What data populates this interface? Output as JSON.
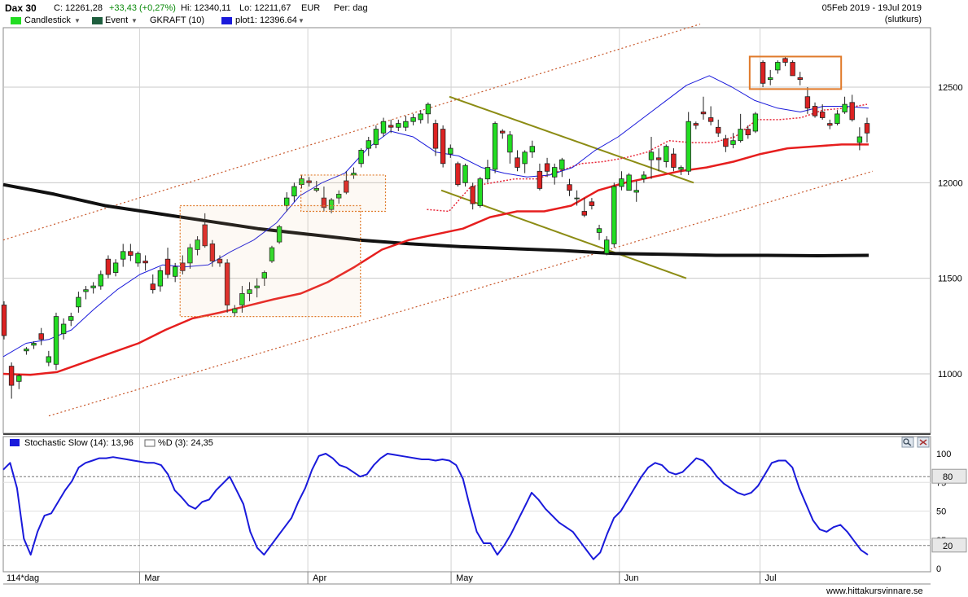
{
  "header": {
    "symbol": "Dax 30",
    "close": "C: 12261,28",
    "change": "+33,43 (+0,27%)",
    "high": "Hi: 12340,11",
    "low": "Lo: 12211,67",
    "currency": "EUR",
    "period": "Per: dag",
    "date_range": "05Feb 2019 - 19Jul 2019",
    "price_type": "(slutkurs)"
  },
  "legend": {
    "candlestick": "Candlestick",
    "event": "Event",
    "gkraft": "GKRAFT (10)",
    "plot1": "plot1: 12396.64"
  },
  "stoch_legend": {
    "k": "Stochastic Slow (14): 13,96",
    "d": "%D (3): 24,35"
  },
  "bottom": {
    "interval": "114*dag",
    "watermark": "www.hittakursvinnare.se"
  },
  "colors": {
    "up": "#22dd22",
    "down": "#dd2222",
    "ma_black": "#111111",
    "ma_red": "#e61e1e",
    "ma_blue": "#1a1adb",
    "stoch": "#1a1adb",
    "channel": "#c8572a",
    "wedge": "#8c8c14",
    "box": "#e07a2a",
    "event_swatch": "#1e5e3e"
  },
  "chart_data": [
    {
      "type": "candlestick",
      "y_axis": {
        "ticks": [
          11000,
          11500,
          12000,
          12500
        ],
        "range": [
          10700,
          12900
        ]
      },
      "months": [
        "Mar",
        "Apr",
        "May",
        "Jun",
        "Jul"
      ],
      "candles": [
        [
          11360,
          11380,
          11180,
          11200
        ],
        [
          11040,
          11060,
          10870,
          10940
        ],
        [
          10960,
          11000,
          10920,
          10990
        ],
        [
          11120,
          11140,
          11100,
          11130
        ],
        [
          11150,
          11170,
          11130,
          11160
        ],
        [
          11210,
          11240,
          11150,
          11180
        ],
        [
          11060,
          11120,
          11040,
          11090
        ],
        [
          11050,
          11320,
          11020,
          11300
        ],
        [
          11210,
          11290,
          11180,
          11260
        ],
        [
          11280,
          11320,
          11250,
          11300
        ],
        [
          11350,
          11430,
          11320,
          11400
        ],
        [
          11430,
          11460,
          11390,
          11440
        ],
        [
          11450,
          11480,
          11420,
          11460
        ],
        [
          11460,
          11540,
          11440,
          11520
        ],
        [
          11600,
          11620,
          11500,
          11520
        ],
        [
          11530,
          11600,
          11510,
          11580
        ],
        [
          11600,
          11680,
          11560,
          11640
        ],
        [
          11640,
          11680,
          11590,
          11620
        ],
        [
          11580,
          11640,
          11560,
          11630
        ],
        [
          11590,
          11620,
          11540,
          11580
        ],
        [
          11470,
          11520,
          11420,
          11440
        ],
        [
          11460,
          11560,
          11430,
          11540
        ],
        [
          11600,
          11660,
          11500,
          11520
        ],
        [
          11510,
          11580,
          11480,
          11560
        ],
        [
          11580,
          11620,
          11520,
          11540
        ],
        [
          11580,
          11680,
          11550,
          11660
        ],
        [
          11650,
          11720,
          11620,
          11700
        ],
        [
          11780,
          11840,
          11660,
          11670
        ],
        [
          11680,
          11700,
          11560,
          11590
        ],
        [
          11600,
          11620,
          11560,
          11580
        ],
        [
          11580,
          11600,
          11320,
          11360
        ],
        [
          11320,
          11360,
          11300,
          11340
        ],
        [
          11360,
          11460,
          11320,
          11420
        ],
        [
          11420,
          11480,
          11380,
          11440
        ],
        [
          11450,
          11500,
          11400,
          11460
        ],
        [
          11500,
          11540,
          11460,
          11530
        ],
        [
          11590,
          11670,
          11580,
          11660
        ],
        [
          11690,
          11780,
          11680,
          11770
        ],
        [
          11880,
          11950,
          11850,
          11920
        ],
        [
          11930,
          12000,
          11900,
          11980
        ],
        [
          11990,
          12040,
          11970,
          12020
        ],
        [
          12010,
          12030,
          11980,
          12000
        ],
        [
          11960,
          12010,
          11950,
          11970
        ],
        [
          11920,
          11980,
          11850,
          11870
        ],
        [
          11860,
          11920,
          11840,
          11910
        ],
        [
          11920,
          11960,
          11890,
          11940
        ],
        [
          12010,
          12060,
          11940,
          11950
        ],
        [
          12040,
          12080,
          12020,
          12050
        ],
        [
          12100,
          12180,
          12080,
          12170
        ],
        [
          12180,
          12240,
          12140,
          12220
        ],
        [
          12200,
          12300,
          12180,
          12280
        ],
        [
          12260,
          12340,
          12240,
          12320
        ],
        [
          12300,
          12330,
          12260,
          12290
        ],
        [
          12290,
          12330,
          12270,
          12310
        ],
        [
          12290,
          12350,
          12270,
          12320
        ],
        [
          12320,
          12360,
          12300,
          12340
        ],
        [
          12330,
          12380,
          12310,
          12360
        ],
        [
          12360,
          12420,
          12310,
          12410
        ],
        [
          12310,
          12330,
          12140,
          12180
        ],
        [
          12280,
          12300,
          12080,
          12100
        ],
        [
          12150,
          12200,
          12130,
          12180
        ],
        [
          12100,
          12110,
          11980,
          11990
        ],
        [
          12000,
          12100,
          11980,
          12090
        ],
        [
          11980,
          12000,
          11860,
          11890
        ],
        [
          11880,
          12030,
          11870,
          12020
        ],
        [
          12020,
          12120,
          12000,
          12080
        ],
        [
          12070,
          12320,
          12050,
          12310
        ],
        [
          12270,
          12280,
          12230,
          12260
        ],
        [
          12160,
          12270,
          12100,
          12250
        ],
        [
          12130,
          12170,
          12060,
          12080
        ],
        [
          12100,
          12170,
          12050,
          12160
        ],
        [
          12160,
          12220,
          12130,
          12190
        ],
        [
          12060,
          12100,
          11960,
          11970
        ],
        [
          12100,
          12130,
          12030,
          12060
        ],
        [
          12030,
          12100,
          11990,
          12080
        ],
        [
          12070,
          12130,
          12030,
          12120
        ],
        [
          11990,
          12020,
          11930,
          11960
        ],
        [
          11920,
          11960,
          11880,
          11920
        ],
        [
          11850,
          11920,
          11820,
          11830
        ],
        [
          11900,
          11920,
          11860,
          11880
        ],
        [
          11740,
          11780,
          11700,
          11760
        ],
        [
          11630,
          11720,
          11620,
          11700
        ],
        [
          11680,
          12000,
          11660,
          11980
        ],
        [
          11980,
          12060,
          11960,
          12020
        ],
        [
          11960,
          12050,
          11960,
          12040
        ],
        [
          11950,
          12010,
          11900,
          11960
        ],
        [
          12020,
          12060,
          12000,
          12040
        ],
        [
          12120,
          12240,
          12020,
          12160
        ],
        [
          12130,
          12180,
          12060,
          12120
        ],
        [
          12110,
          12200,
          12080,
          12190
        ],
        [
          12150,
          12180,
          12060,
          12080
        ],
        [
          12070,
          12090,
          12040,
          12080
        ],
        [
          12060,
          12370,
          12040,
          12320
        ],
        [
          12310,
          12320,
          12280,
          12300
        ],
        [
          12370,
          12450,
          12330,
          12360
        ],
        [
          12340,
          12400,
          12300,
          12320
        ],
        [
          12290,
          12330,
          12240,
          12260
        ],
        [
          12230,
          12250,
          12160,
          12190
        ],
        [
          12200,
          12260,
          12180,
          12220
        ],
        [
          12220,
          12360,
          12210,
          12280
        ],
        [
          12280,
          12300,
          12230,
          12250
        ],
        [
          12270,
          12370,
          12260,
          12360
        ],
        [
          12630,
          12640,
          12500,
          12520
        ],
        [
          12540,
          12590,
          12510,
          12550
        ],
        [
          12590,
          12640,
          12570,
          12630
        ],
        [
          12650,
          12660,
          12610,
          12630
        ],
        [
          12630,
          12640,
          12560,
          12560
        ],
        [
          12550,
          12580,
          12510,
          12540
        ],
        [
          12450,
          12500,
          12360,
          12390
        ],
        [
          12400,
          12420,
          12340,
          12350
        ],
        [
          12370,
          12410,
          12330,
          12340
        ],
        [
          12310,
          12330,
          12280,
          12300
        ],
        [
          12310,
          12380,
          12300,
          12360
        ],
        [
          12370,
          12450,
          12360,
          12410
        ],
        [
          12420,
          12460,
          12320,
          12330
        ],
        [
          12210,
          12290,
          12170,
          12240
        ],
        [
          12310,
          12340,
          12210,
          12260
        ]
      ],
      "ma_long_black": [
        11990,
        11940,
        11880,
        11840,
        11800,
        11760,
        11730,
        11700,
        11680,
        11665,
        11655,
        11645,
        11630,
        11625,
        11620,
        11620,
        11618,
        11620
      ],
      "ma_mid_red": [
        11000,
        10995,
        11010,
        11060,
        11110,
        11160,
        11230,
        11290,
        11320,
        11355,
        11390,
        11420,
        11480,
        11560,
        11650,
        11700,
        11730,
        11760,
        11820,
        11850,
        11850,
        11880,
        11960,
        12000,
        12030,
        12060,
        12080,
        12110,
        12150,
        12180,
        12190,
        12200,
        12200
      ],
      "ma_short_blue": [
        11090,
        11160,
        11180,
        11230,
        11340,
        11440,
        11520,
        11570,
        11560,
        11570,
        11640,
        11700,
        11790,
        11930,
        12000,
        12050,
        12180,
        12270,
        12240,
        12160,
        12140,
        12080,
        12050,
        12030,
        12040,
        12080,
        12170,
        12240,
        12330,
        12420,
        12510,
        12560,
        12500,
        12430,
        12390,
        12370,
        12400,
        12400,
        12390
      ],
      "trend_support": [
        11860,
        11850,
        11980,
        12000,
        12020,
        12020,
        12060,
        12100,
        12110,
        12130,
        12160,
        12220,
        12210,
        12210,
        12240,
        12330,
        12330,
        12340,
        12380,
        12390,
        12410
      ]
    },
    {
      "type": "line",
      "title": "Stochastic Slow (14)",
      "y_axis": {
        "ticks": [
          0,
          25,
          50,
          75,
          100
        ],
        "range": [
          0,
          100
        ]
      },
      "levels": [
        80,
        20
      ],
      "k": [
        86,
        92,
        70,
        26,
        12,
        32,
        46,
        48,
        58,
        68,
        76,
        88,
        92,
        94,
        96,
        96,
        97,
        96,
        95,
        94,
        93,
        92,
        92,
        90,
        82,
        68,
        62,
        55,
        52,
        58,
        60,
        68,
        74,
        80,
        68,
        56,
        32,
        18,
        12,
        20,
        28,
        36,
        44,
        58,
        70,
        86,
        98,
        100,
        96,
        90,
        88,
        84,
        80,
        82,
        90,
        96,
        100,
        99,
        98,
        97,
        96,
        95,
        95,
        94,
        95,
        94,
        90,
        78,
        54,
        32,
        22,
        22,
        12,
        20,
        30,
        42,
        54,
        66,
        60,
        52,
        46,
        40,
        36,
        32,
        24,
        16,
        8,
        14,
        30,
        44,
        50,
        60,
        70,
        80,
        88,
        92,
        90,
        84,
        82,
        84,
        90,
        96,
        94,
        88,
        80,
        74,
        70,
        66,
        64,
        66,
        72,
        82,
        92,
        94,
        94,
        88,
        70,
        56,
        42,
        34,
        32,
        36,
        38,
        32,
        24,
        16,
        12
      ]
    }
  ]
}
